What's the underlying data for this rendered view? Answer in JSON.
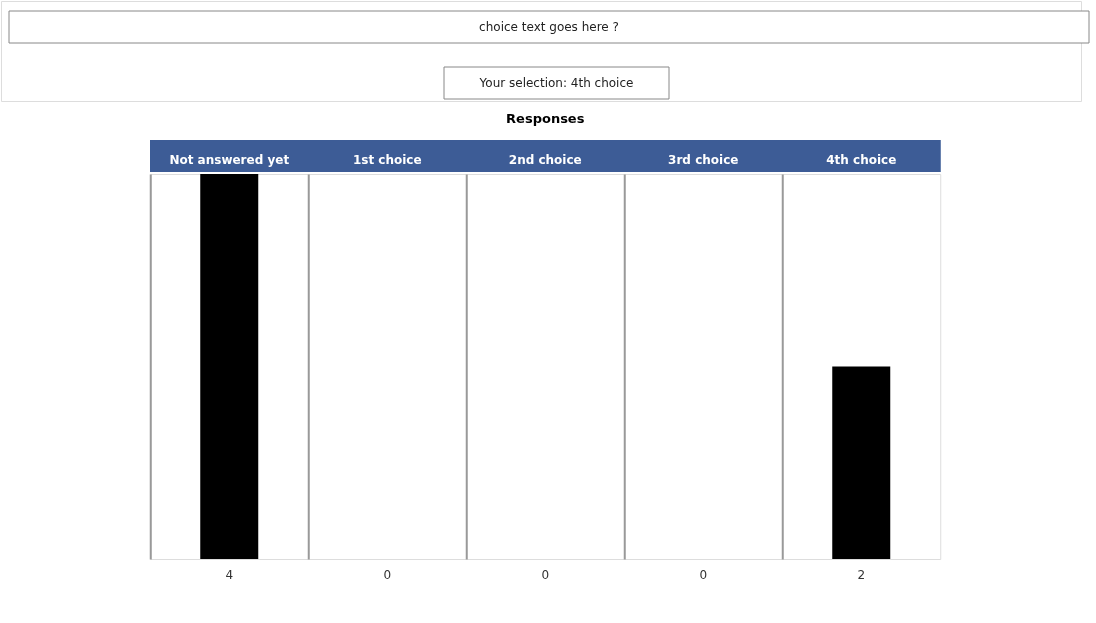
{
  "chart_data": {
    "type": "bar",
    "title": "Responses",
    "annotations": [
      "choice text goes here ?",
      "Your selection: 4th choice"
    ],
    "categories": [
      "Not answered yet",
      "1st choice",
      "2nd choice",
      "3rd choice",
      "4th choice"
    ],
    "values": [
      4,
      0,
      0,
      0,
      2
    ],
    "color": "#000000",
    "data_labels": true,
    "grid": "x"
  }
}
